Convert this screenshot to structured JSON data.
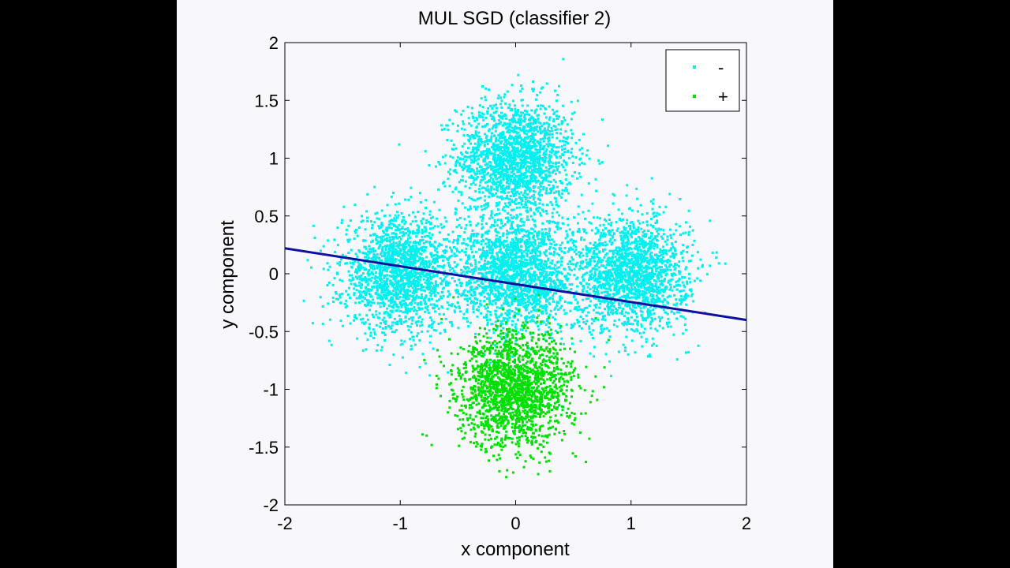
{
  "chart_data": {
    "type": "scatter",
    "title": "MUL SGD (classifier 2)",
    "xlabel": "x component",
    "ylabel": "y component",
    "xlim": [
      -2,
      2
    ],
    "ylim": [
      -2,
      2
    ],
    "x_ticks": [
      "-2",
      "-1",
      "0",
      "1",
      "2"
    ],
    "y_ticks": [
      "2",
      "1.5",
      "1",
      "0.5",
      "0",
      "-0.5",
      "-1",
      "-1.5",
      "-2"
    ],
    "x_tick_values": [
      -2,
      -1,
      0,
      1,
      2
    ],
    "y_tick_values": [
      2,
      1.5,
      1,
      0.5,
      0,
      -0.5,
      -1,
      -1.5,
      -2
    ],
    "grid": false,
    "legend_position": "top-right",
    "series": [
      {
        "name": "-",
        "color": "#00f0f0",
        "clusters": [
          {
            "center": [
              0,
              1
            ],
            "spread": 0.25,
            "count": 1800
          },
          {
            "center": [
              -1,
              0
            ],
            "spread": 0.25,
            "count": 1800
          },
          {
            "center": [
              1,
              0
            ],
            "spread": 0.25,
            "count": 1800
          },
          {
            "center": [
              0,
              0
            ],
            "spread": 0.25,
            "count": 1800
          }
        ]
      },
      {
        "name": "+",
        "color": "#00e000",
        "clusters": [
          {
            "center": [
              0,
              -1
            ],
            "spread": 0.25,
            "count": 1800
          }
        ]
      }
    ],
    "decision_boundary": {
      "color": "#1010a0",
      "points": [
        [
          -2,
          0.22
        ],
        [
          2,
          -0.4
        ]
      ]
    }
  }
}
